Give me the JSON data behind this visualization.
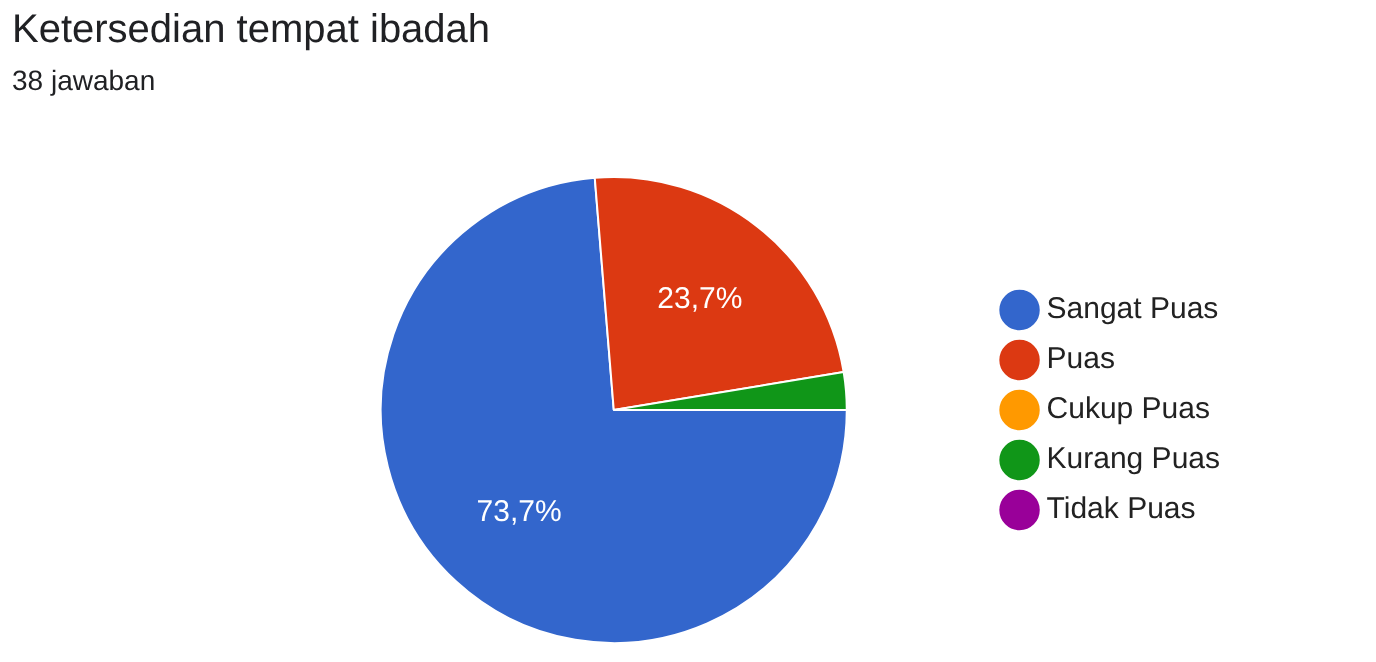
{
  "chart_data": {
    "type": "pie",
    "title": "Ketersedian tempat ibadah",
    "subtitle": "38 jawaban",
    "categories": [
      "Sangat Puas",
      "Puas",
      "Cukup Puas",
      "Kurang Puas",
      "Tidak Puas"
    ],
    "values": [
      73.7,
      23.7,
      0,
      2.6,
      0
    ],
    "colors": [
      "#3366cc",
      "#dc3912",
      "#ff9900",
      "#109618",
      "#990099"
    ],
    "value_labels": [
      "73,7%",
      "23,7%",
      null,
      null,
      null
    ],
    "legend": "right"
  }
}
